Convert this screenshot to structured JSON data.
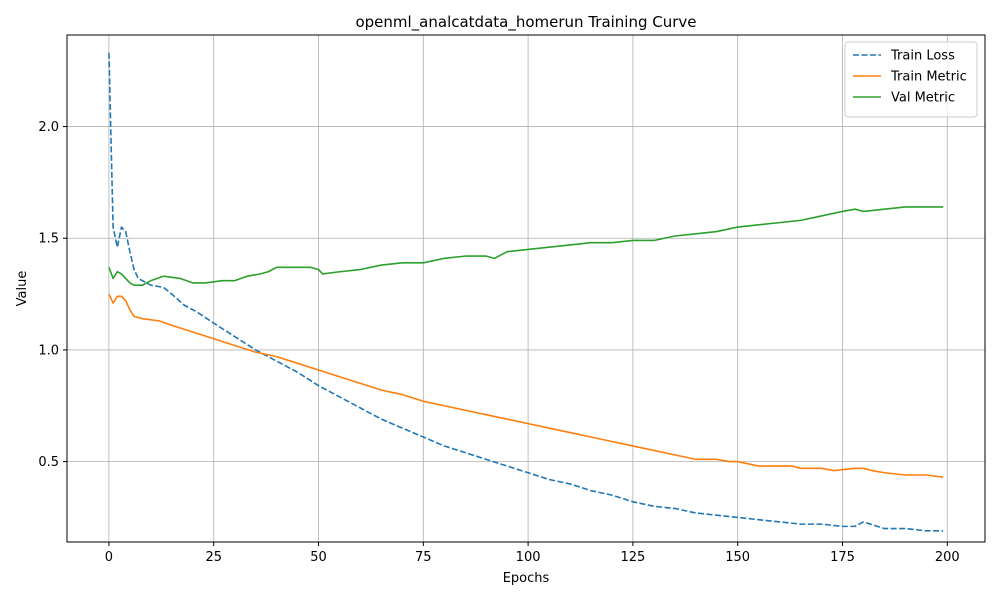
{
  "chart_data": {
    "type": "line",
    "title": "openml_analcatdata_homerun Training Curve",
    "xlabel": "Epochs",
    "ylabel": "Value",
    "xlim": [
      -10,
      209
    ],
    "ylim": [
      0.14,
      2.41
    ],
    "xticks": [
      0,
      25,
      50,
      75,
      100,
      125,
      150,
      175,
      200
    ],
    "yticks": [
      0.5,
      1.0,
      1.5,
      2.0
    ],
    "xtick_labels": [
      "0",
      "25",
      "50",
      "75",
      "100",
      "125",
      "150",
      "175",
      "200"
    ],
    "ytick_labels": [
      "0.5",
      "1.0",
      "1.5",
      "2.0"
    ],
    "grid": true,
    "legend_position": "top-right",
    "series": [
      {
        "name": "Train Loss",
        "color": "#1f77b4",
        "dashed": true,
        "points": [
          [
            0,
            2.33
          ],
          [
            1,
            1.55
          ],
          [
            2,
            1.46
          ],
          [
            3,
            1.55
          ],
          [
            4,
            1.53
          ],
          [
            5,
            1.44
          ],
          [
            6,
            1.36
          ],
          [
            7,
            1.32
          ],
          [
            10,
            1.29
          ],
          [
            13,
            1.28
          ],
          [
            15,
            1.25
          ],
          [
            18,
            1.2
          ],
          [
            21,
            1.17
          ],
          [
            25,
            1.12
          ],
          [
            30,
            1.06
          ],
          [
            35,
            1.0
          ],
          [
            40,
            0.95
          ],
          [
            45,
            0.9
          ],
          [
            50,
            0.84
          ],
          [
            55,
            0.79
          ],
          [
            60,
            0.74
          ],
          [
            65,
            0.69
          ],
          [
            70,
            0.65
          ],
          [
            75,
            0.61
          ],
          [
            80,
            0.57
          ],
          [
            85,
            0.54
          ],
          [
            90,
            0.51
          ],
          [
            95,
            0.48
          ],
          [
            100,
            0.45
          ],
          [
            105,
            0.42
          ],
          [
            110,
            0.4
          ],
          [
            115,
            0.37
          ],
          [
            120,
            0.35
          ],
          [
            125,
            0.32
          ],
          [
            130,
            0.3
          ],
          [
            135,
            0.29
          ],
          [
            140,
            0.27
          ],
          [
            145,
            0.26
          ],
          [
            150,
            0.25
          ],
          [
            155,
            0.24
          ],
          [
            160,
            0.23
          ],
          [
            165,
            0.22
          ],
          [
            170,
            0.22
          ],
          [
            175,
            0.21
          ],
          [
            178,
            0.21
          ],
          [
            180,
            0.23
          ],
          [
            185,
            0.2
          ],
          [
            190,
            0.2
          ],
          [
            195,
            0.19
          ],
          [
            199,
            0.19
          ]
        ]
      },
      {
        "name": "Train Metric",
        "color": "#ff7f0e",
        "dashed": false,
        "points": [
          [
            0,
            1.25
          ],
          [
            1,
            1.21
          ],
          [
            2,
            1.24
          ],
          [
            3,
            1.24
          ],
          [
            4,
            1.22
          ],
          [
            5,
            1.18
          ],
          [
            6,
            1.15
          ],
          [
            8,
            1.14
          ],
          [
            12,
            1.13
          ],
          [
            15,
            1.11
          ],
          [
            20,
            1.08
          ],
          [
            25,
            1.05
          ],
          [
            30,
            1.02
          ],
          [
            35,
            0.99
          ],
          [
            40,
            0.97
          ],
          [
            45,
            0.94
          ],
          [
            50,
            0.91
          ],
          [
            55,
            0.88
          ],
          [
            60,
            0.85
          ],
          [
            65,
            0.82
          ],
          [
            70,
            0.8
          ],
          [
            75,
            0.77
          ],
          [
            80,
            0.75
          ],
          [
            85,
            0.73
          ],
          [
            90,
            0.71
          ],
          [
            95,
            0.69
          ],
          [
            100,
            0.67
          ],
          [
            105,
            0.65
          ],
          [
            110,
            0.63
          ],
          [
            115,
            0.61
          ],
          [
            120,
            0.59
          ],
          [
            125,
            0.57
          ],
          [
            130,
            0.55
          ],
          [
            135,
            0.53
          ],
          [
            140,
            0.51
          ],
          [
            145,
            0.51
          ],
          [
            148,
            0.5
          ],
          [
            150,
            0.5
          ],
          [
            155,
            0.48
          ],
          [
            160,
            0.48
          ],
          [
            163,
            0.48
          ],
          [
            165,
            0.47
          ],
          [
            170,
            0.47
          ],
          [
            173,
            0.46
          ],
          [
            178,
            0.47
          ],
          [
            180,
            0.47
          ],
          [
            182,
            0.46
          ],
          [
            185,
            0.45
          ],
          [
            190,
            0.44
          ],
          [
            195,
            0.44
          ],
          [
            199,
            0.43
          ]
        ]
      },
      {
        "name": "Val Metric",
        "color": "#2ca02c",
        "dashed": false,
        "points": [
          [
            0,
            1.37
          ],
          [
            1,
            1.32
          ],
          [
            2,
            1.35
          ],
          [
            3,
            1.34
          ],
          [
            4,
            1.32
          ],
          [
            5,
            1.3
          ],
          [
            6,
            1.29
          ],
          [
            8,
            1.29
          ],
          [
            10,
            1.31
          ],
          [
            13,
            1.33
          ],
          [
            17,
            1.32
          ],
          [
            20,
            1.3
          ],
          [
            23,
            1.3
          ],
          [
            27,
            1.31
          ],
          [
            30,
            1.31
          ],
          [
            33,
            1.33
          ],
          [
            36,
            1.34
          ],
          [
            38,
            1.35
          ],
          [
            40,
            1.37
          ],
          [
            45,
            1.37
          ],
          [
            48,
            1.37
          ],
          [
            50,
            1.36
          ],
          [
            51,
            1.34
          ],
          [
            55,
            1.35
          ],
          [
            60,
            1.36
          ],
          [
            65,
            1.38
          ],
          [
            70,
            1.39
          ],
          [
            75,
            1.39
          ],
          [
            80,
            1.41
          ],
          [
            85,
            1.42
          ],
          [
            90,
            1.42
          ],
          [
            92,
            1.41
          ],
          [
            95,
            1.44
          ],
          [
            100,
            1.45
          ],
          [
            105,
            1.46
          ],
          [
            110,
            1.47
          ],
          [
            115,
            1.48
          ],
          [
            120,
            1.48
          ],
          [
            125,
            1.49
          ],
          [
            130,
            1.49
          ],
          [
            135,
            1.51
          ],
          [
            140,
            1.52
          ],
          [
            145,
            1.53
          ],
          [
            150,
            1.55
          ],
          [
            155,
            1.56
          ],
          [
            160,
            1.57
          ],
          [
            165,
            1.58
          ],
          [
            170,
            1.6
          ],
          [
            175,
            1.62
          ],
          [
            178,
            1.63
          ],
          [
            180,
            1.62
          ],
          [
            185,
            1.63
          ],
          [
            190,
            1.64
          ],
          [
            195,
            1.64
          ],
          [
            199,
            1.64
          ]
        ]
      }
    ]
  }
}
